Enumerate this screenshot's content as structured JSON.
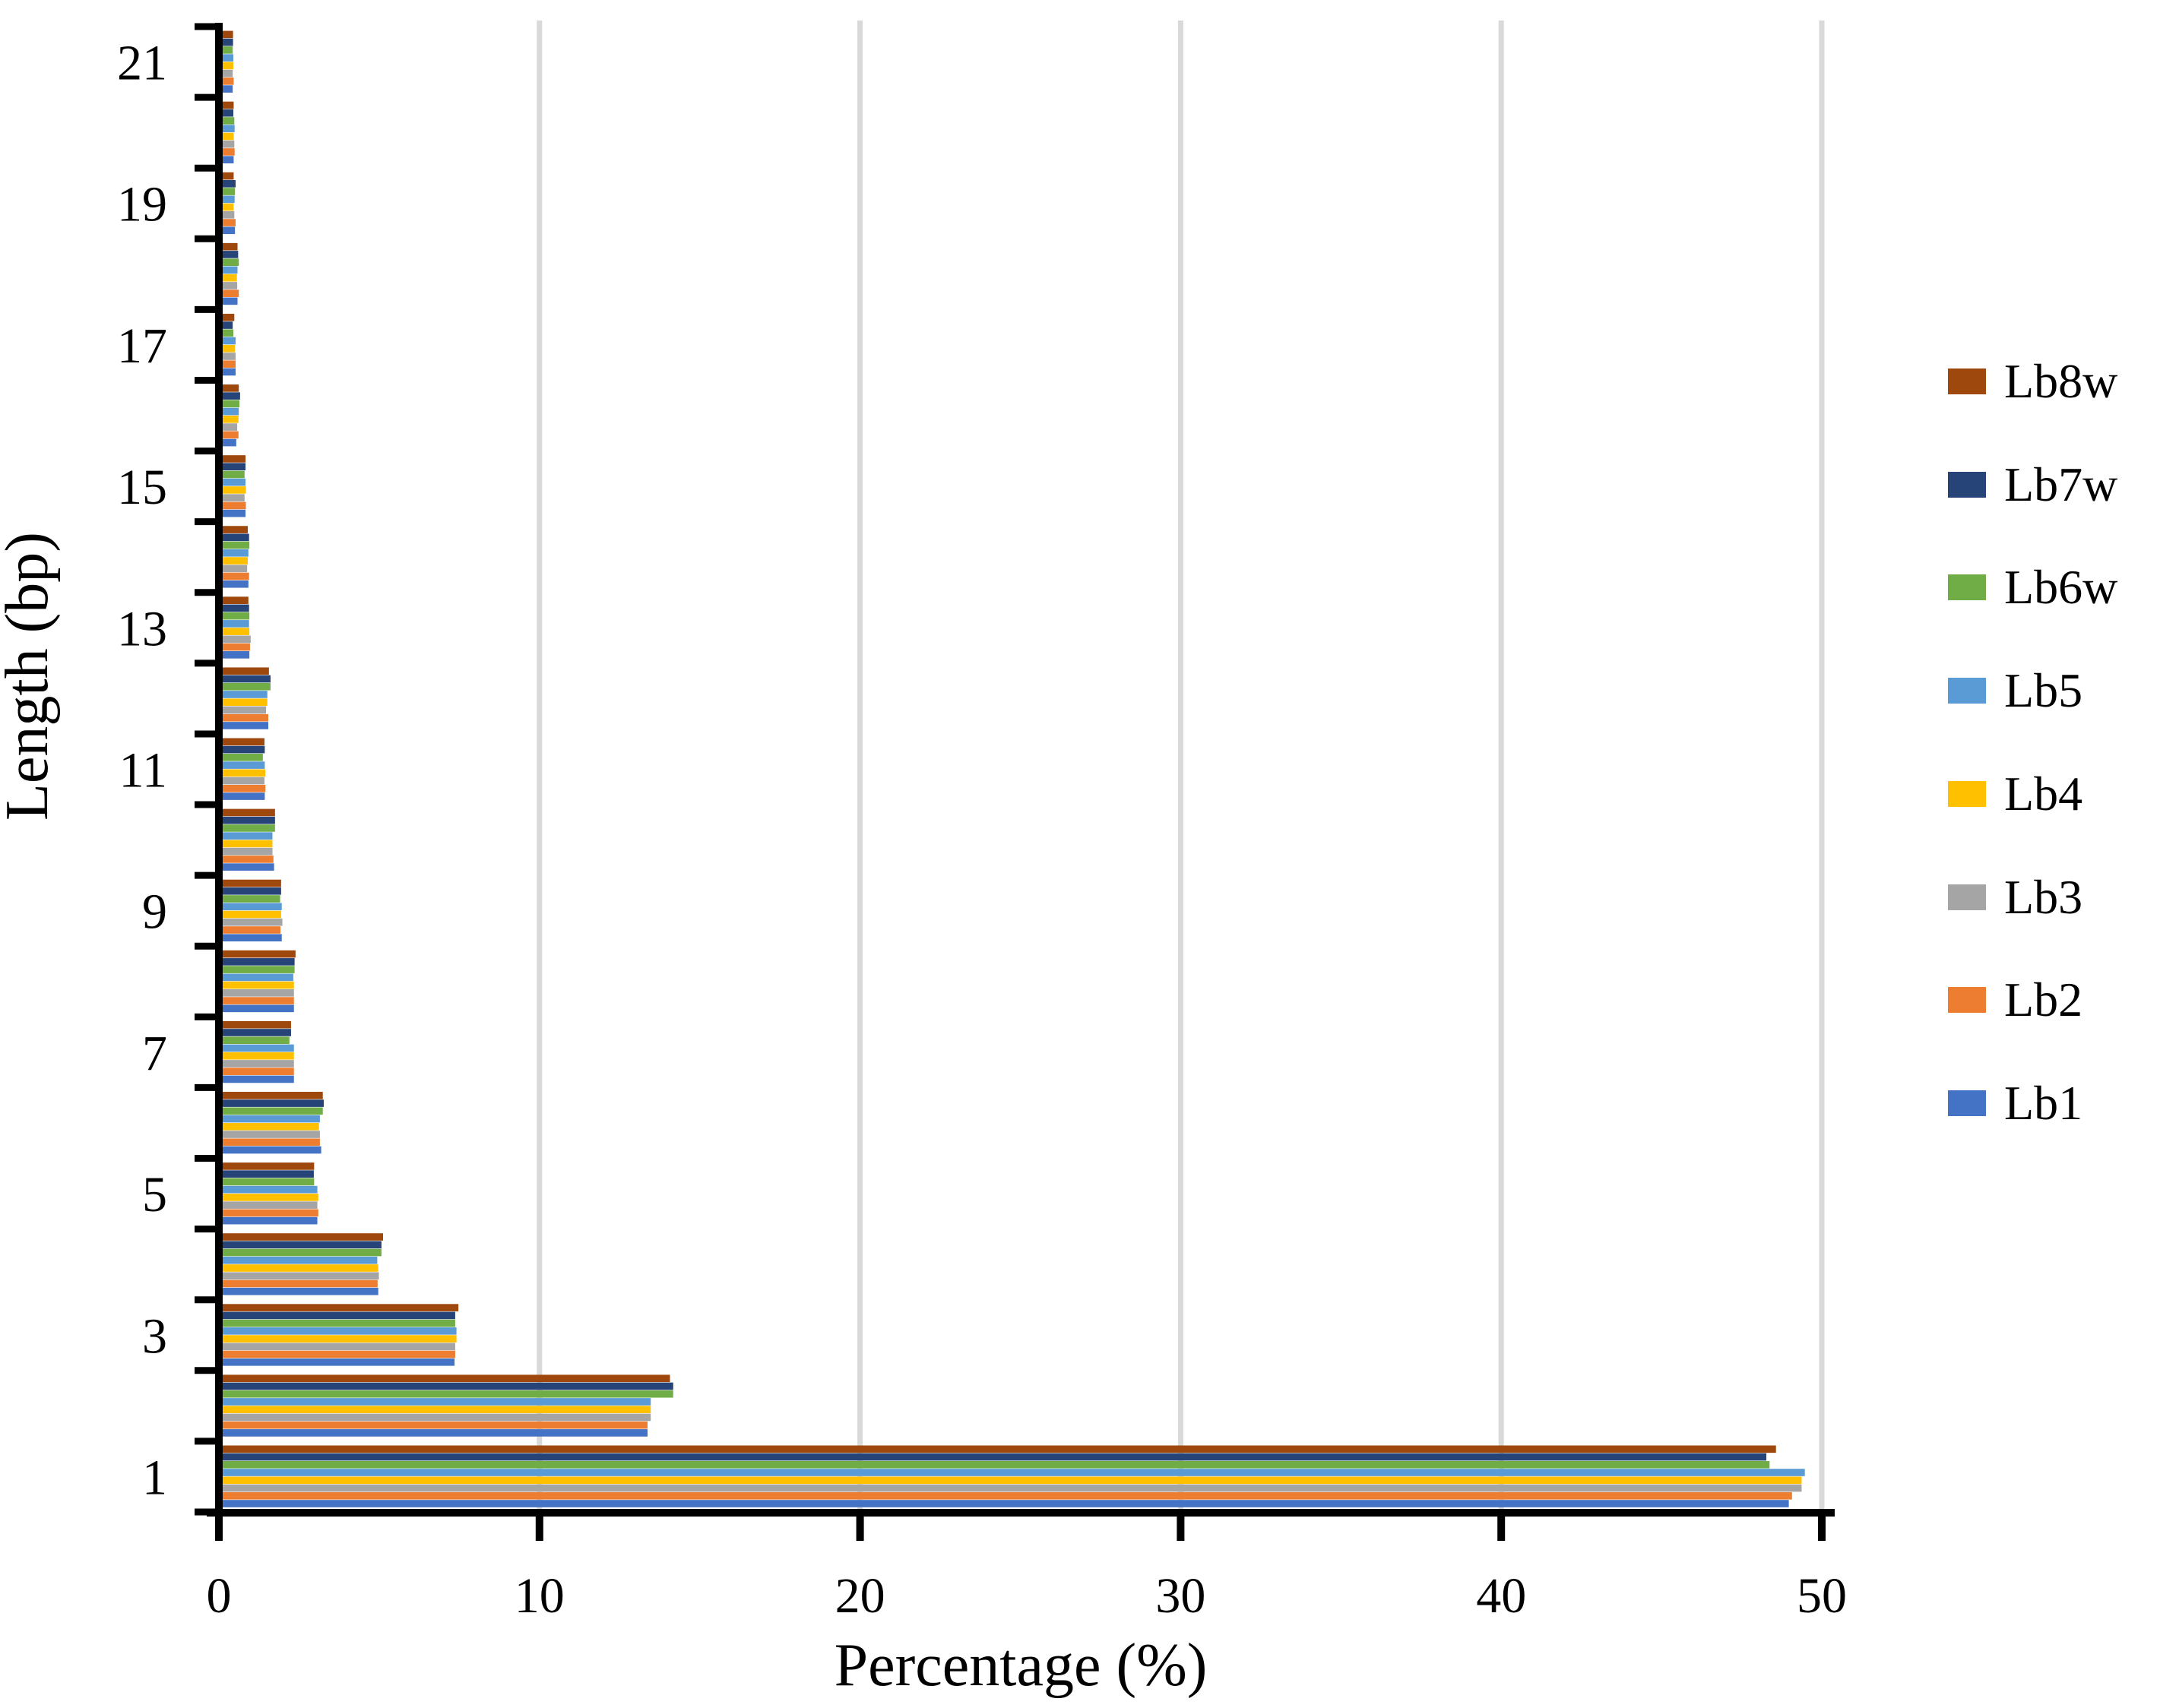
{
  "chart_data": {
    "type": "bar",
    "orientation": "horizontal",
    "title": "",
    "xlabel": "Percentage (%)",
    "ylabel": "Length (bp)",
    "xlim": [
      0,
      50
    ],
    "x_ticks": [
      0,
      10,
      20,
      30,
      40,
      50
    ],
    "y_tick_labels": [
      "1",
      "3",
      "5",
      "7",
      "9",
      "11",
      "13",
      "15",
      "17",
      "19",
      "21"
    ],
    "categories": [
      1,
      2,
      3,
      4,
      5,
      6,
      7,
      8,
      9,
      10,
      11,
      12,
      13,
      14,
      15,
      16,
      17,
      18,
      19,
      20,
      21
    ],
    "grid": "vertical-gridlines-only",
    "gridline_color": "#D9D9D9",
    "axis_color": "#000000",
    "legend_position": "right-outside",
    "legend_order_top_to_bottom": [
      "Lb8w",
      "Lb7w",
      "Lb6w",
      "Lb5",
      "Lb4",
      "Lb3",
      "Lb2",
      "Lb1"
    ],
    "series": [
      {
        "name": "Lb1",
        "color": "#4472C4",
        "values": [
          48.9,
          13.3,
          7.28,
          4.9,
          3.0,
          3.12,
          2.27,
          2.27,
          1.89,
          1.65,
          1.36,
          1.47,
          0.88,
          0.85,
          0.76,
          0.47,
          0.45,
          0.51,
          0.43,
          0.39,
          0.36
        ]
      },
      {
        "name": "Lb2",
        "color": "#ED7D31",
        "values": [
          49.0,
          13.3,
          7.3,
          4.88,
          3.03,
          3.08,
          2.27,
          2.27,
          1.85,
          1.63,
          1.38,
          1.47,
          0.9,
          0.87,
          0.77,
          0.54,
          0.45,
          0.55,
          0.45,
          0.42,
          0.39
        ]
      },
      {
        "name": "Lb3",
        "color": "#A5A5A5",
        "values": [
          49.3,
          13.4,
          7.3,
          4.92,
          3.0,
          3.08,
          2.27,
          2.27,
          1.91,
          1.6,
          1.35,
          1.4,
          0.92,
          0.81,
          0.73,
          0.5,
          0.45,
          0.5,
          0.41,
          0.41,
          0.36
        ]
      },
      {
        "name": "Lb4",
        "color": "#FFC000",
        "values": [
          49.3,
          13.4,
          7.34,
          4.9,
          3.03,
          3.05,
          2.27,
          2.27,
          1.87,
          1.6,
          1.38,
          1.44,
          0.88,
          0.83,
          0.77,
          0.54,
          0.43,
          0.49,
          0.39,
          0.39,
          0.38
        ]
      },
      {
        "name": "Lb5",
        "color": "#5B9BD5",
        "values": [
          49.4,
          13.4,
          7.34,
          4.87,
          3.0,
          3.08,
          2.27,
          2.25,
          1.89,
          1.6,
          1.36,
          1.44,
          0.87,
          0.85,
          0.76,
          0.55,
          0.45,
          0.51,
          0.42,
          0.42,
          0.38
        ]
      },
      {
        "name": "Lb6w",
        "color": "#70AD47",
        "values": [
          48.3,
          14.1,
          7.3,
          5.0,
          2.9,
          3.17,
          2.13,
          2.29,
          1.84,
          1.68,
          1.3,
          1.54,
          0.88,
          0.88,
          0.73,
          0.57,
          0.38,
          0.55,
          0.43,
          0.41,
          0.36
        ]
      },
      {
        "name": "Lb7w",
        "color": "#264478",
        "values": [
          48.2,
          14.1,
          7.3,
          5.0,
          2.89,
          3.2,
          2.18,
          2.29,
          1.87,
          1.68,
          1.36,
          1.54,
          0.87,
          0.87,
          0.76,
          0.59,
          0.36,
          0.53,
          0.45,
          0.38,
          0.37
        ]
      },
      {
        "name": "Lb8w",
        "color": "#9E480E",
        "values": [
          48.5,
          14.0,
          7.4,
          5.05,
          2.9,
          3.17,
          2.18,
          2.32,
          1.87,
          1.68,
          1.35,
          1.49,
          0.85,
          0.83,
          0.76,
          0.55,
          0.41,
          0.51,
          0.39,
          0.39,
          0.37
        ]
      }
    ]
  }
}
